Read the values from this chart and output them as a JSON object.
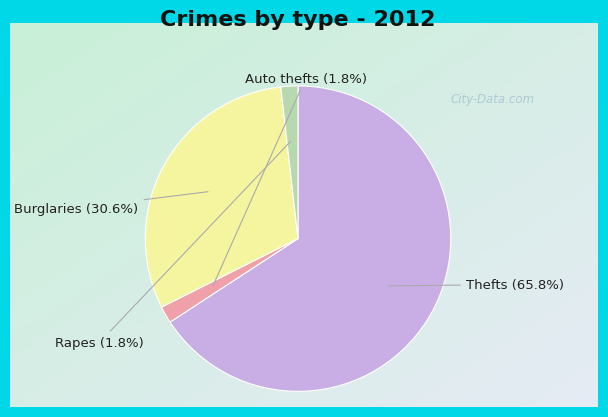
{
  "title": "Crimes by type - 2012",
  "slices": [
    {
      "label": "Thefts (65.8%)",
      "value": 65.8,
      "color": "#c9aee5"
    },
    {
      "label": "Auto thefts (1.8%)",
      "value": 1.8,
      "color": "#f0a0a8"
    },
    {
      "label": "Burglaries (30.6%)",
      "value": 30.6,
      "color": "#f5f5a0"
    },
    {
      "label": "Rapes (1.8%)",
      "value": 1.8,
      "color": "#b8d8b0"
    }
  ],
  "startangle": 90,
  "bg_outer": "#00d8e8",
  "bg_inner_tl": [
    200,
    240,
    215
  ],
  "bg_inner_br": [
    230,
    235,
    245
  ],
  "title_fontsize": 16,
  "label_fontsize": 9.5,
  "watermark": "City-Data.com"
}
